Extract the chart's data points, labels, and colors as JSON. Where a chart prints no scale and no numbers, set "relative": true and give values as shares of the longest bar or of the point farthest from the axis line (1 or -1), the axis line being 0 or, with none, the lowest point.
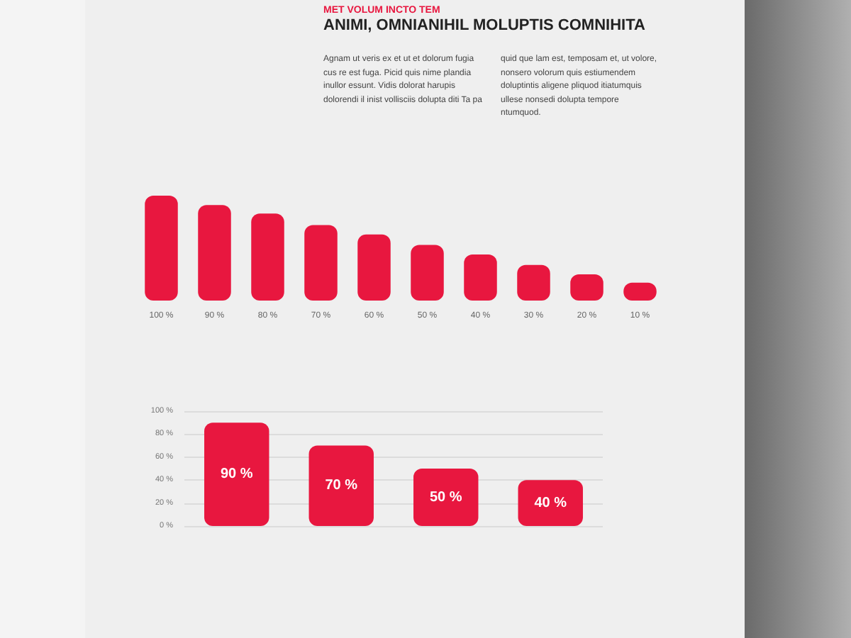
{
  "chart_data": [
    {
      "type": "bar",
      "subtitle": "MET VOLUM INCTO TEM",
      "title": "ANIMI, OMNIANIHIL MOLUPTIS COMNIHITA",
      "annotations": [
        "Agnam ut veris ex et ut et dolorum fugia cus re est fuga. Picid quis nime plandia inullor essunt. Vidis dolorat harupis dolorendi il inist vollisciis dolupta diti Ta pa",
        "quid que lam est, temposam et, ut volore, nonsero volorum quis estiumendem doluptintis aligene pliquod itiatumquis ullese nonsedi dolupta tempore ntumquod."
      ],
      "categories": [
        "100 %",
        "90 %",
        "80 %",
        "70 %",
        "60 %",
        "50 %",
        "40 %",
        "30 %",
        "20 %",
        "10 %"
      ],
      "values": [
        1,
        0.91,
        0.83,
        0.72,
        0.63,
        0.53,
        0.44,
        0.34,
        0.25,
        0.17
      ],
      "color": "#e8173f",
      "relative": true
    },
    {
      "type": "bar",
      "categories": [
        null,
        null,
        null,
        null
      ],
      "values": [
        90,
        70,
        50,
        40
      ],
      "value_labels": [
        "90 %",
        "70 %",
        "50 %",
        "40 %"
      ],
      "color": "#e8173f",
      "ylim": [
        0,
        100
      ],
      "yticks": [
        {
          "value": 0,
          "label": "0 %"
        },
        {
          "value": 20,
          "label": "20 %"
        },
        {
          "value": 40,
          "label": "40 %"
        },
        {
          "value": 60,
          "label": "60 %"
        },
        {
          "value": 80,
          "label": "80 %"
        },
        {
          "value": 100,
          "label": "100 %"
        }
      ],
      "grid": "y",
      "tick_labels": "y"
    }
  ]
}
